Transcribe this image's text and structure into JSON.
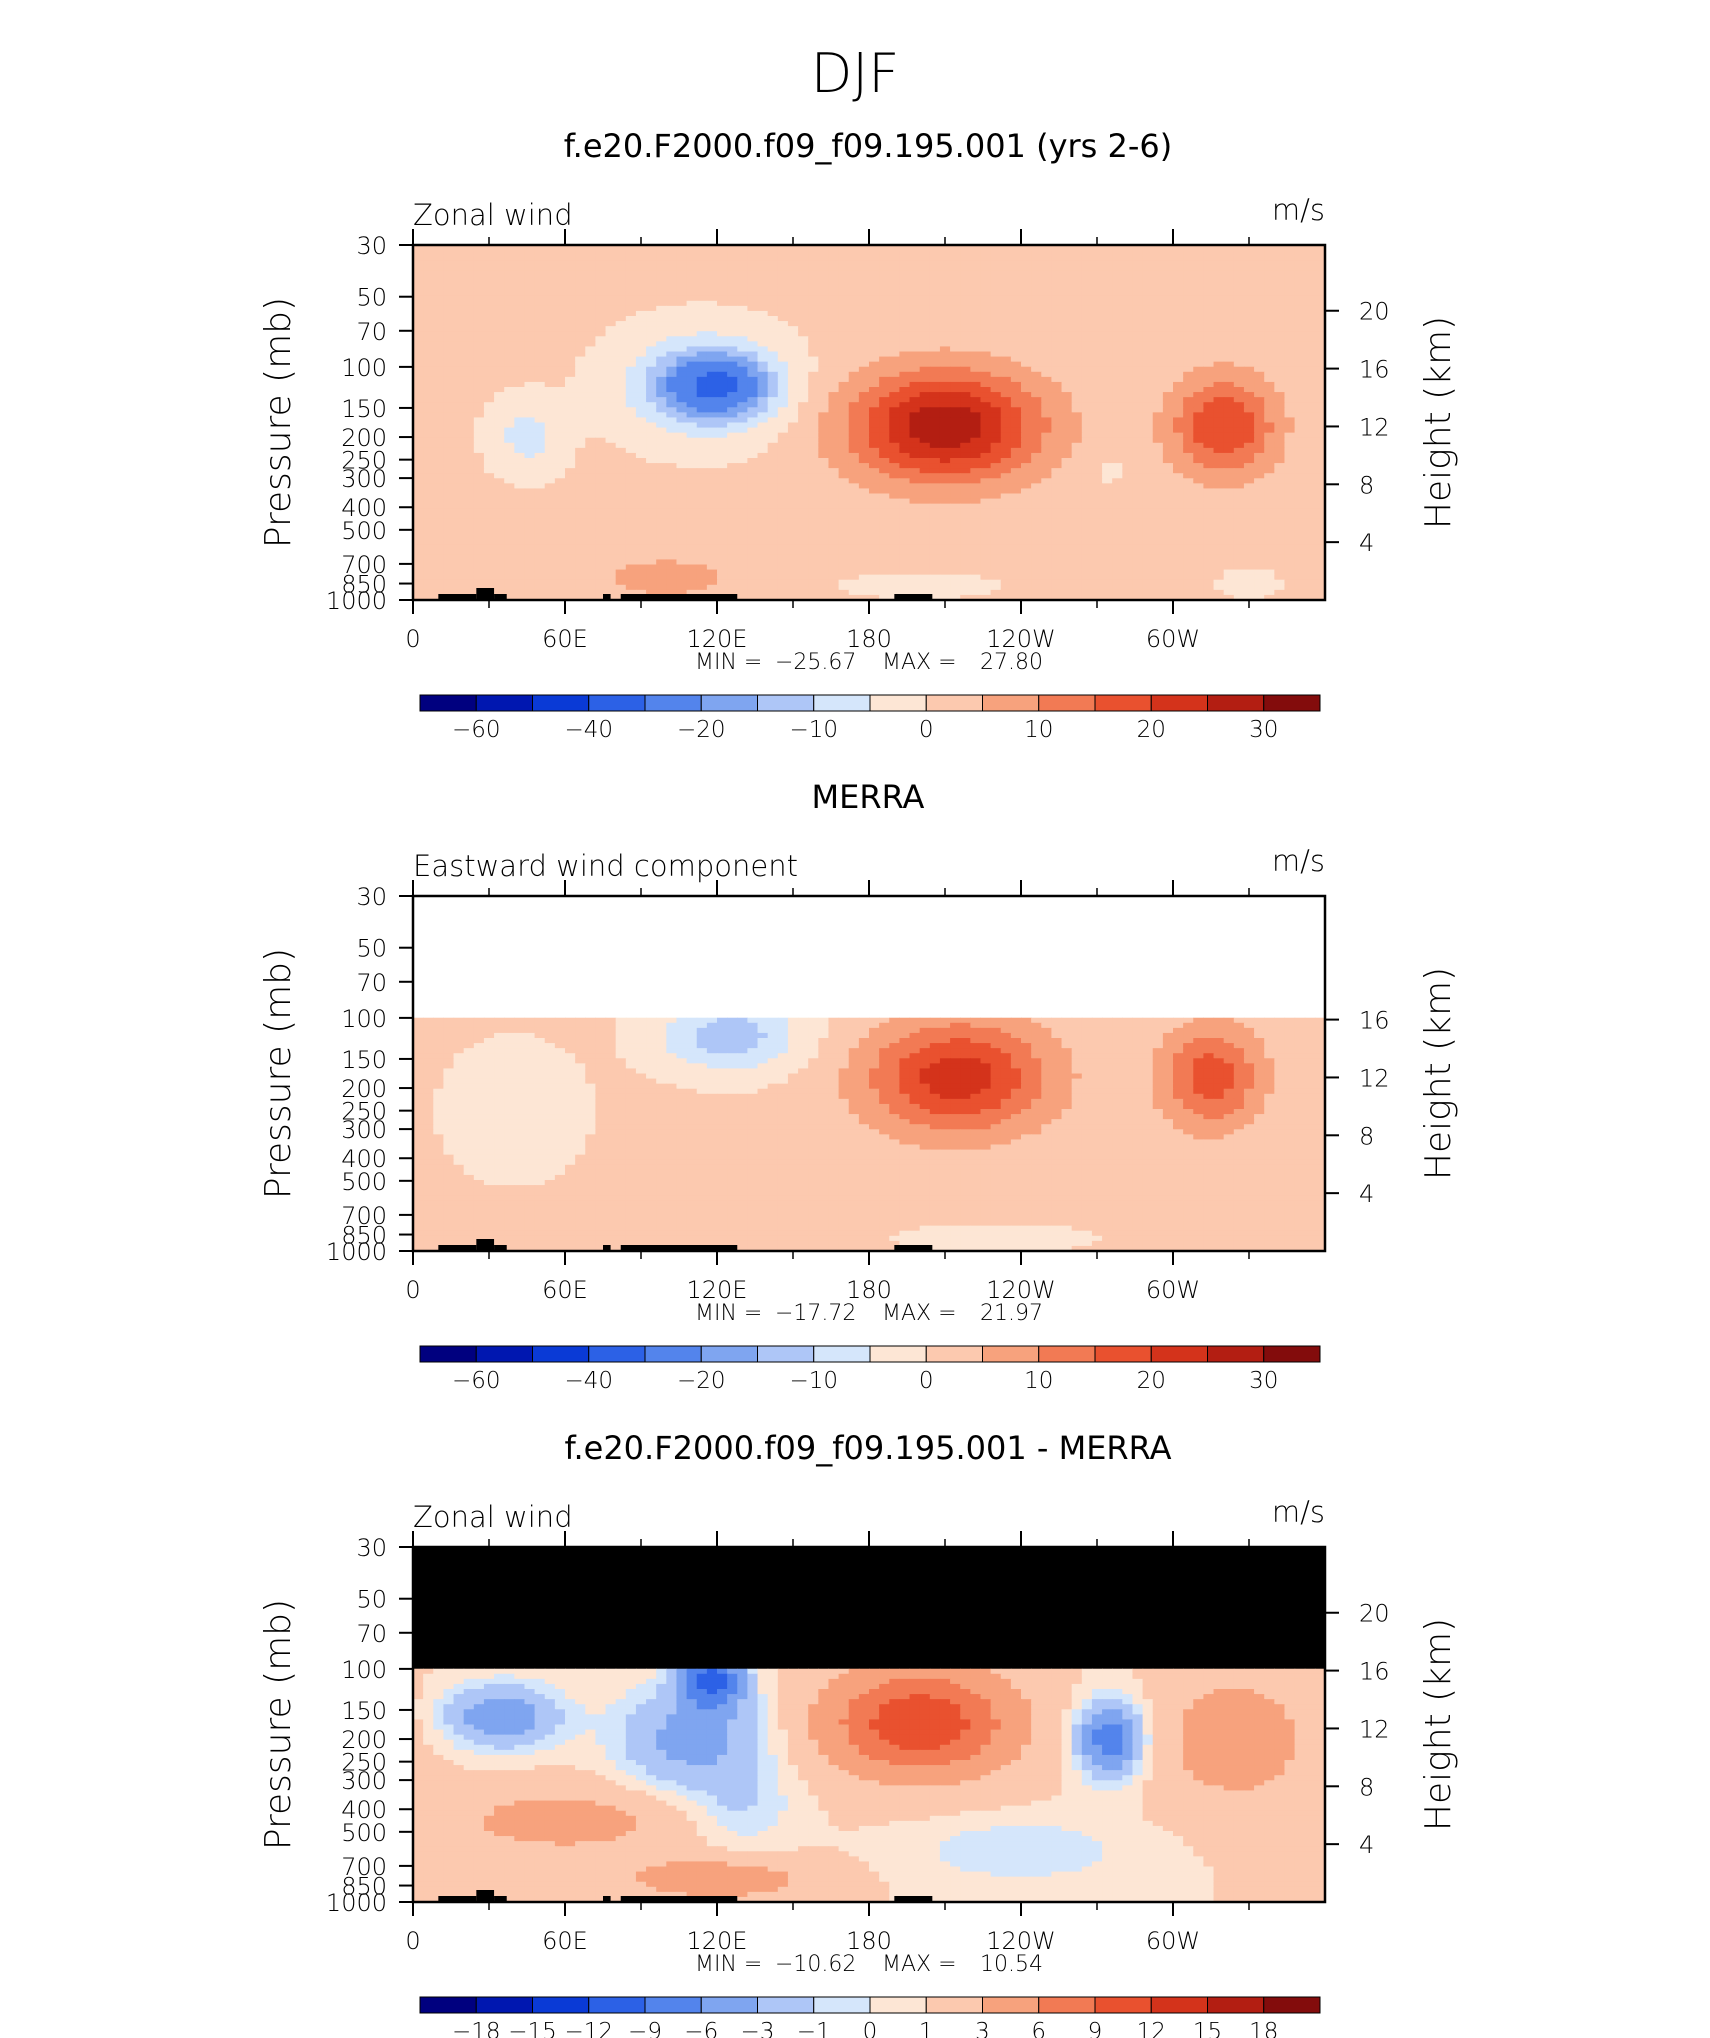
{
  "figure": {
    "title": "DJF"
  },
  "chart_data": [
    {
      "type": "heatmap",
      "title": "f.e20.F2000.f09_f09.195.001 (yrs 2-6)",
      "field_label": "Zonal wind",
      "units": "m/s",
      "ylabel": "Pressure (mb)",
      "y2label": "Height (km)",
      "x_ticks": [
        "0",
        "60E",
        "120E",
        "180",
        "120W",
        "60W"
      ],
      "y_ticks": [
        "30",
        "50",
        "70",
        "100",
        "150",
        "200",
        "250",
        "300",
        "400",
        "500",
        "700",
        "850",
        "1000"
      ],
      "y2_ticks": [
        "20",
        "16",
        "12",
        "8",
        "4"
      ],
      "stats": {
        "min_label": "MIN",
        "min": "−25.67",
        "max_label": "MAX",
        "max": "27.80"
      },
      "colorbar_labels": [
        "−60",
        "−40",
        "−20",
        "−10",
        "0",
        "10",
        "20",
        "30"
      ],
      "data_top_mb": 30,
      "features": [
        {
          "lon": 45,
          "p": 200,
          "v": -8,
          "rx": 14,
          "rp": 0.35
        },
        {
          "lon": 120,
          "p": 120,
          "v": -22,
          "rx": 20,
          "rp": 0.3
        },
        {
          "lon": 115,
          "p": 120,
          "v": -14,
          "rx": 32,
          "rp": 0.5
        },
        {
          "lon": 210,
          "p": 180,
          "v": 27.8,
          "rx": 38,
          "rp": 0.55
        },
        {
          "lon": 320,
          "p": 180,
          "v": 19,
          "rx": 21,
          "rp": 0.5
        },
        {
          "lon": 100,
          "p": 800,
          "v": 6,
          "rx": 30,
          "rp": 0.25
        },
        {
          "lon": 200,
          "p": 870,
          "v": -6,
          "rx": 25,
          "rp": 0.1
        },
        {
          "lon": 330,
          "p": 850,
          "v": -5,
          "rx": 10,
          "rp": 0.12
        },
        {
          "lon": 275,
          "p": 280,
          "v": -4,
          "rx": 5,
          "rp": 0.12
        }
      ],
      "baseline": 1,
      "show_topography": true
    },
    {
      "type": "heatmap",
      "title": "MERRA",
      "field_label": "Eastward wind component",
      "units": "m/s",
      "ylabel": "Pressure (mb)",
      "y2label": "Height (km)",
      "x_ticks": [
        "0",
        "60E",
        "120E",
        "180",
        "120W",
        "60W"
      ],
      "y_ticks": [
        "30",
        "50",
        "70",
        "100",
        "150",
        "200",
        "250",
        "300",
        "400",
        "500",
        "700",
        "850",
        "1000"
      ],
      "y2_ticks": [
        "16",
        "12",
        "8",
        "4"
      ],
      "stats": {
        "min_label": "MIN",
        "min": "−17.72",
        "max_label": "MAX",
        "max": "21.97"
      },
      "colorbar_labels": [
        "−60",
        "−40",
        "−20",
        "−10",
        "0",
        "10",
        "20",
        "30"
      ],
      "data_top_mb": 100,
      "missing_fill": "white",
      "features": [
        {
          "lon": 125,
          "p": 120,
          "v": -14,
          "rx": 28,
          "rp": 0.35
        },
        {
          "lon": 40,
          "p": 250,
          "v": -5,
          "rx": 25,
          "rp": 0.6
        },
        {
          "lon": 215,
          "p": 180,
          "v": 21.97,
          "rx": 36,
          "rp": 0.55
        },
        {
          "lon": 315,
          "p": 180,
          "v": 17,
          "rx": 20,
          "rp": 0.5
        },
        {
          "lon": 100,
          "p": 800,
          "v": 4,
          "rx": 30,
          "rp": 0.25
        },
        {
          "lon": 230,
          "p": 880,
          "v": -4,
          "rx": 35,
          "rp": 0.12
        }
      ],
      "baseline": 1,
      "show_topography": true
    },
    {
      "type": "heatmap",
      "title": "f.e20.F2000.f09_f09.195.001 - MERRA",
      "field_label": "Zonal wind",
      "units": "m/s",
      "ylabel": "Pressure (mb)",
      "y2label": "Height (km)",
      "x_ticks": [
        "0",
        "60E",
        "120E",
        "180",
        "120W",
        "60W"
      ],
      "y_ticks": [
        "30",
        "50",
        "70",
        "100",
        "150",
        "200",
        "250",
        "300",
        "400",
        "500",
        "700",
        "850",
        "1000"
      ],
      "y2_ticks": [
        "20",
        "16",
        "12",
        "8",
        "4"
      ],
      "stats": {
        "min_label": "MIN",
        "min": "−10.62",
        "max_label": "MAX",
        "max": "10.54"
      },
      "colorbar_labels": [
        "−18",
        "−15",
        "−12",
        "−9",
        "−6",
        "−3",
        "−1",
        "0",
        "1",
        "3",
        "6",
        "9",
        "12",
        "15",
        "18"
      ],
      "data_top_mb": 100,
      "missing_fill": "black",
      "features": [
        {
          "lon": 35,
          "p": 160,
          "v": -6,
          "rx": 22,
          "rp": 0.3
        },
        {
          "lon": 118,
          "p": 110,
          "v": -10.62,
          "rx": 12,
          "rp": 0.3
        },
        {
          "lon": 110,
          "p": 200,
          "v": -5,
          "rx": 28,
          "rp": 0.5
        },
        {
          "lon": 200,
          "p": 170,
          "v": 10.54,
          "rx": 35,
          "rp": 0.5
        },
        {
          "lon": 275,
          "p": 200,
          "v": -9,
          "rx": 12,
          "rp": 0.35
        },
        {
          "lon": 325,
          "p": 200,
          "v": 4,
          "rx": 28,
          "rp": 0.6
        },
        {
          "lon": 60,
          "p": 450,
          "v": 3,
          "rx": 50,
          "rp": 0.35
        },
        {
          "lon": 120,
          "p": 800,
          "v": 4,
          "rx": 35,
          "rp": 0.2
        },
        {
          "lon": 130,
          "p": 400,
          "v": -2,
          "rx": 20,
          "rp": 0.4
        },
        {
          "lon": 240,
          "p": 600,
          "v": -2,
          "rx": 40,
          "rp": 0.3
        }
      ],
      "baseline": 1,
      "show_topography": true
    }
  ],
  "colorbar_colors": [
    "#00007f",
    "#0017b0",
    "#0a3ad6",
    "#2c61e6",
    "#5384ec",
    "#7fa5f0",
    "#aec6f7",
    "#d5e6fb",
    "#fde6d5",
    "#fcc9af",
    "#f7a27d",
    "#f27a54",
    "#e9512f",
    "#d4331b",
    "#b31e12",
    "#830c0c"
  ]
}
